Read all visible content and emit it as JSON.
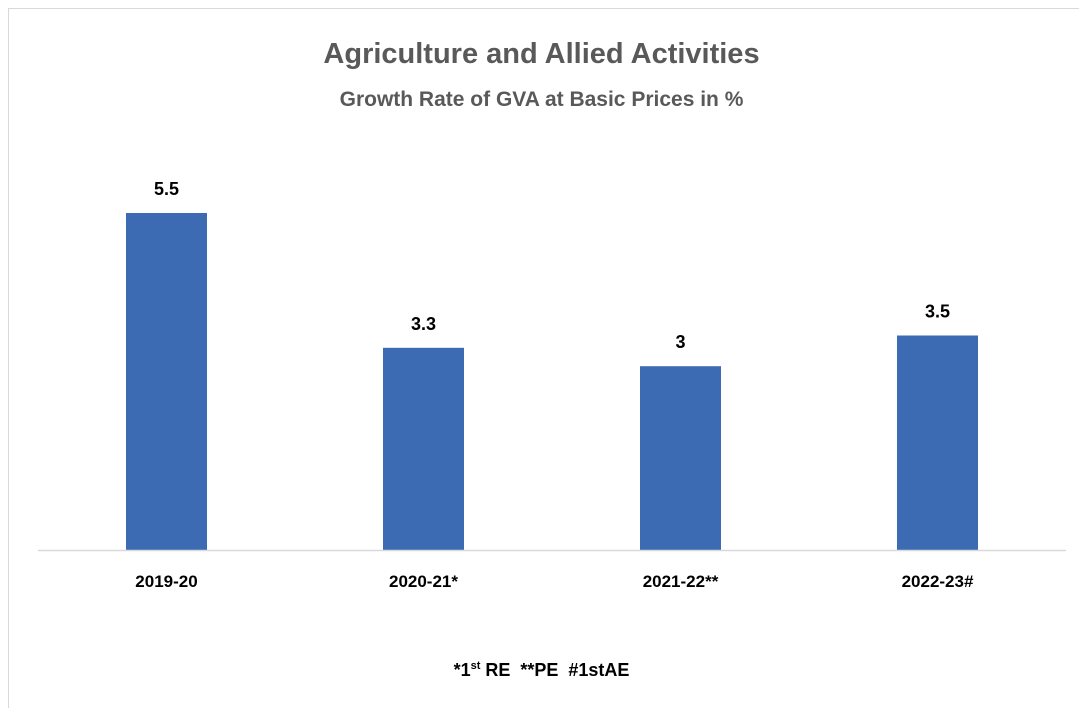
{
  "chart_data": {
    "type": "bar",
    "title": "Agriculture and Allied Activities",
    "subtitle": "Growth Rate of GVA at Basic Prices in %",
    "categories": [
      "2019-20",
      "2020-21*",
      "2021-22**",
      "2022-23#"
    ],
    "values": [
      5.5,
      3.3,
      3,
      3.5
    ],
    "data_labels": [
      "5.5",
      "3.3",
      "3",
      "3.5"
    ],
    "ylim": [
      0,
      5.5
    ],
    "grid": false,
    "legend": "none",
    "bar_color": "#3d6bb3",
    "axis_color": "#d9d9d9"
  },
  "footnote": {
    "p1": "*1",
    "p1_sup": "st",
    "p2": " RE  **PE  #1stAE"
  }
}
